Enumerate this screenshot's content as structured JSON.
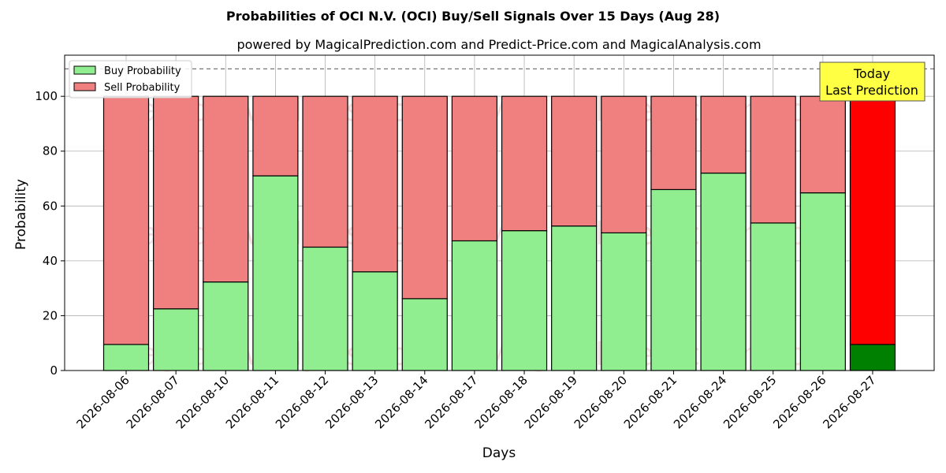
{
  "chart_data": {
    "type": "bar",
    "stacked": true,
    "title": "Probabilities of OCI N.V. (OCI) Buy/Sell Signals Over 15 Days (Aug 28)",
    "subtitle": "powered by MagicalPrediction.com and Predict-Price.com and MagicalAnalysis.com",
    "xlabel": "Days",
    "ylabel": "Probability",
    "ylim": [
      0,
      115
    ],
    "yticks": [
      0,
      20,
      40,
      60,
      80,
      100
    ],
    "grid": true,
    "legend_position": "top-left",
    "reference_line": 110,
    "categories": [
      "2026-08-06",
      "2026-08-07",
      "2026-08-10",
      "2026-08-11",
      "2026-08-12",
      "2026-08-13",
      "2026-08-14",
      "2026-08-17",
      "2026-08-18",
      "2026-08-19",
      "2026-08-20",
      "2026-08-21",
      "2026-08-24",
      "2026-08-25",
      "2026-08-26",
      "2026-08-27"
    ],
    "series": [
      {
        "name": "Buy Probability",
        "color": "#90ee90",
        "values": [
          9.5,
          22.5,
          32.3,
          71,
          45,
          36,
          26.2,
          47.3,
          51,
          52.7,
          50.2,
          66,
          72,
          53.8,
          64.8,
          9.5
        ]
      },
      {
        "name": "Sell Probability",
        "color": "#f08080",
        "values": [
          90.5,
          77.5,
          67.7,
          29,
          55,
          64,
          73.8,
          52.7,
          49,
          47.3,
          49.8,
          34,
          28,
          46.2,
          35.2,
          90.5
        ]
      }
    ],
    "highlight": {
      "index": 15,
      "buy_color": "#008000",
      "sell_color": "#ff0000",
      "annotation": [
        "Today",
        "Last Prediction"
      ],
      "annotation_bg": "#ffff44"
    },
    "watermarks": [
      "MagicalAnalysis.com",
      "MagicalPrediction.com"
    ]
  }
}
